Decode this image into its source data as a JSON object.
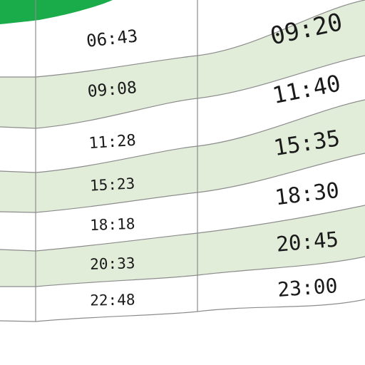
{
  "timetable": {
    "header_color": "#1aab4a",
    "stripe_color": "#e1ecd9",
    "line_color": "#8c8c8c",
    "column_b": [
      "06:43",
      "09:08",
      "11:28",
      "15:23",
      "18:18",
      "20:33",
      "22:48"
    ],
    "column_c": [
      "09:20",
      "11:40",
      "15:35",
      "18:30",
      "20:45",
      "23:00"
    ]
  }
}
